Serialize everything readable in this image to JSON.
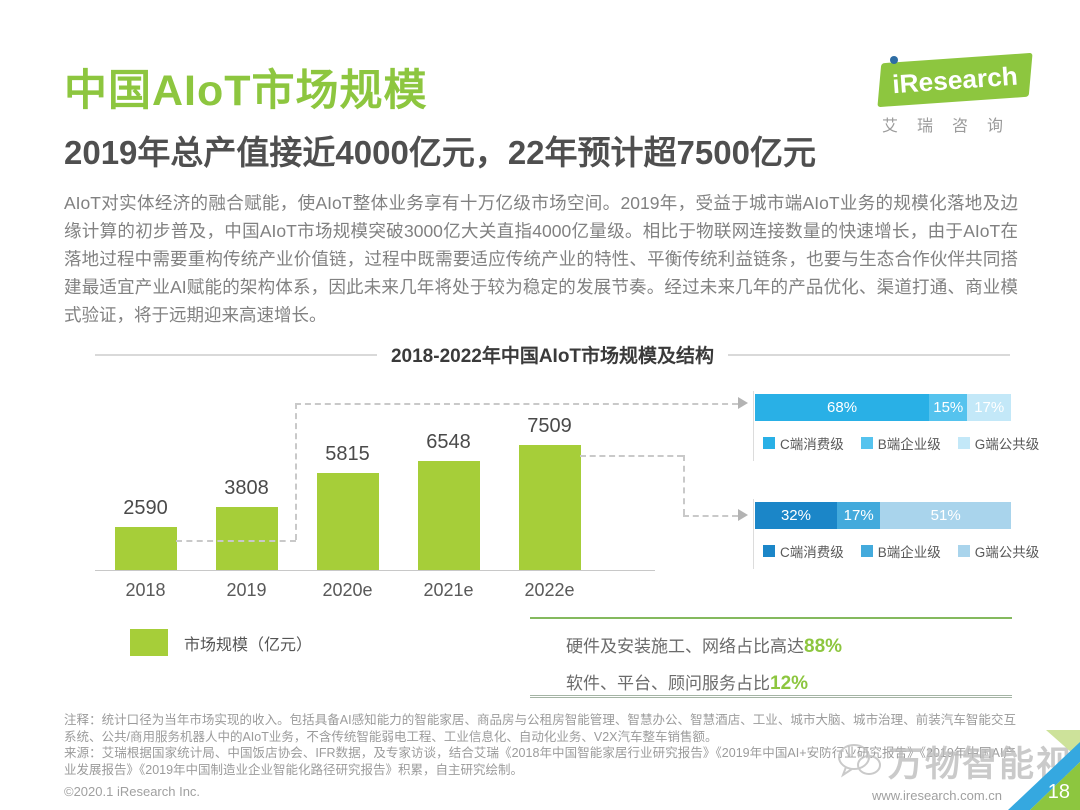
{
  "header": {
    "title": "中国AIoT市场规模",
    "subtitle": "2019年总产值接近4000亿元，22年预计超7500亿元",
    "logo": {
      "brand": "iResearch",
      "tagline": "艾瑞咨询"
    }
  },
  "intro": {
    "paragraph": "AIoT对实体经济的融合赋能，使AIoT整体业务享有十万亿级市场空间。2019年，受益于城市端AIoT业务的规模化落地及边缘计算的初步普及，中国AIoT市场规模突破3000亿大关直指4000亿量级。相比于物联网连接数量的快速增长，由于AIoT在落地过程中需要重构传统产业价值链，过程中既需要适应传统产业的特性、平衡传统利益链条，也要与生态合作伙伴共同搭建最适宜产业AI赋能的架构体系，因此未来几年将处于较为稳定的发展节奏。经过未来几年的产品优化、渠道打通、商业模式验证，将于远期迎来高速增长。"
  },
  "chart_data": {
    "type": "bar",
    "title": "2018-2022年中国AIoT市场规模及结构",
    "categories": [
      "2018",
      "2019",
      "2020e",
      "2021e",
      "2022e"
    ],
    "values": [
      2590,
      3808,
      5815,
      6548,
      7509
    ],
    "value_labels": [
      "2590",
      "3808",
      "5815",
      "6548",
      "7509"
    ],
    "ylim": [
      0,
      7509
    ],
    "grid": false,
    "bar_color": "#a6ce39",
    "legend": "市场规模（亿元）",
    "structure_bars": {
      "type": "stacked-horizontal-bar",
      "legend_entries": [
        "C端消费级",
        "B端企业级",
        "G端公共级"
      ],
      "rows": [
        {
          "linked_category": "2018",
          "values": [
            68,
            15,
            17
          ],
          "labels": [
            "68%",
            "15%",
            "17%"
          ],
          "colors": [
            "#29b0e6",
            "#55c3ee",
            "#c3e8f8"
          ]
        },
        {
          "linked_category": "2022e",
          "values": [
            32,
            17,
            51
          ],
          "labels": [
            "32%",
            "17%",
            "51%"
          ],
          "colors": [
            "#1b86c8",
            "#43aadc",
            "#a9d4ec"
          ]
        }
      ]
    },
    "callout": {
      "line1": {
        "text": "硬件及安装施工、网络占比高达",
        "value": "88%"
      },
      "line2": {
        "text": "软件、平台、顾问服务占比",
        "value": "12%"
      }
    }
  },
  "notes": {
    "annotation": "注释：统计口径为当年市场实现的收入。包括具备AI感知能力的智能家居、商品房与公租房智能管理、智慧办公、智慧酒店、工业、城市大脑、城市治理、前装汽车智能交互系统、公共/商用服务机器人中的AIoT业务，不含传统智能弱电工程、工业信息化、自动化业务、V2X汽车整车销售额。",
    "source": "来源：艾瑞根据国家统计局、中国饭店协会、IFR数据，及专家访谈，结合艾瑞《2018年中国智能家居行业研究报告》《2019年中国AI+安防行业研究报告》《2019年中国AI产业发展报告》《2019年中国制造业企业智能化路径研究报告》积累，自主研究绘制。"
  },
  "footer": {
    "copyright": "©2020.1 iResearch Inc.",
    "website": "www.iresearch.com.cn",
    "page_number": "18"
  },
  "watermark": {
    "text": "万物智能视界"
  },
  "colors": {
    "brand_green": "#8dc63f",
    "bar_green": "#a6ce39",
    "accent_blue": "#29b0e6",
    "dark_blue": "#1b86c8"
  }
}
